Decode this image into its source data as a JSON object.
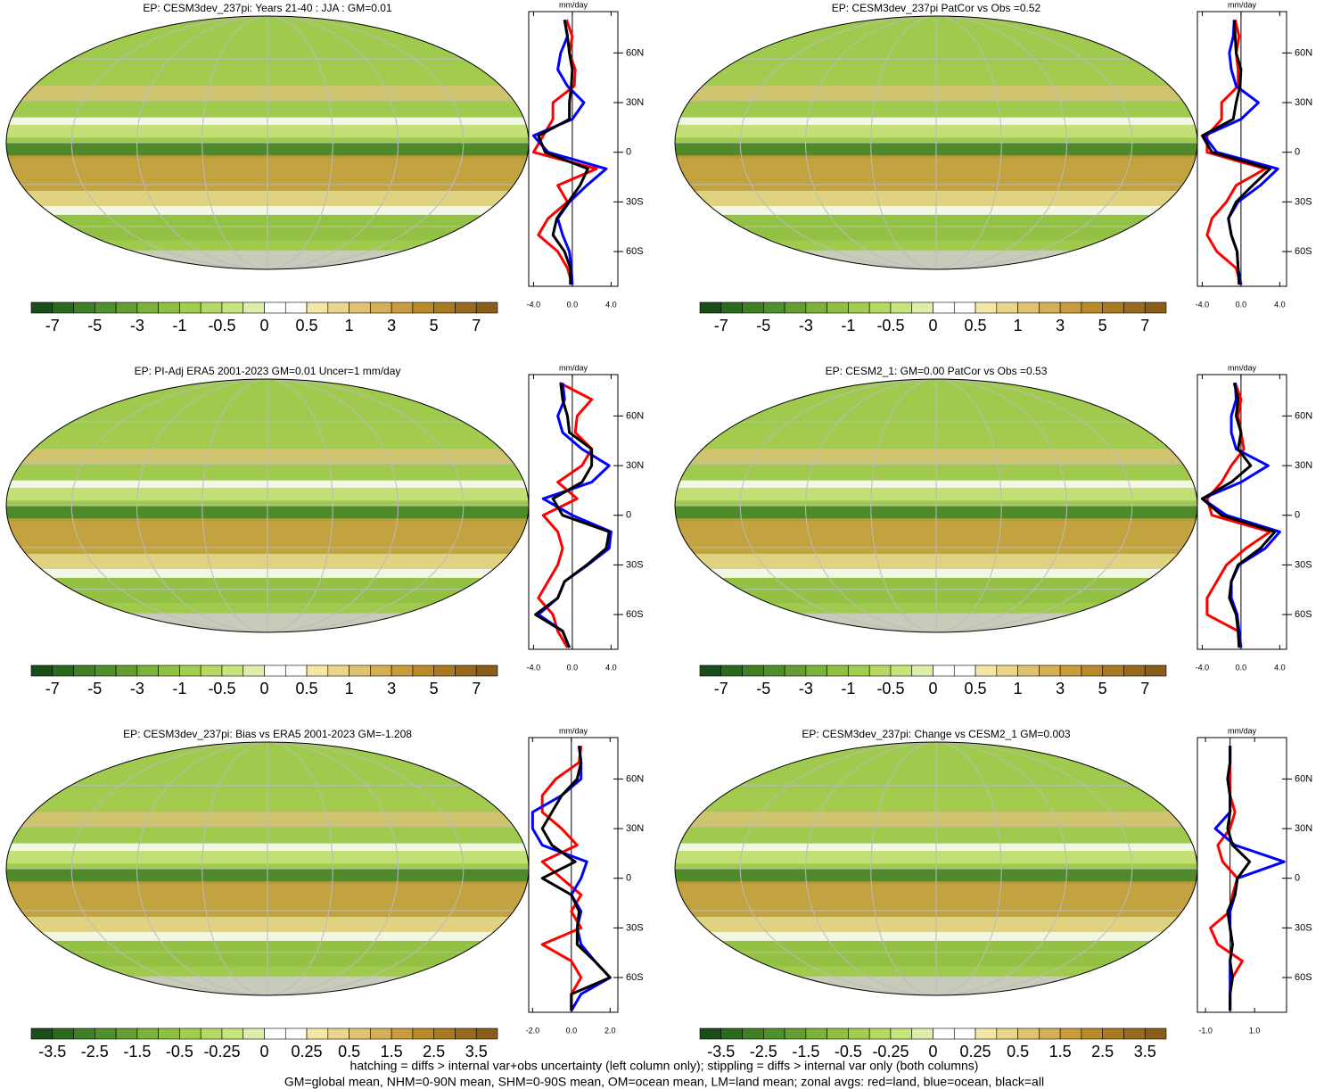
{
  "chart_data": [
    {
      "type": "map",
      "title": "EP: CESM3dev_237pi: Years 21-40 : JJA : GM=0.01",
      "colorbar_labels": [
        -7,
        -5,
        -3,
        -1,
        -0.5,
        0,
        0.5,
        1,
        3,
        5,
        7
      ],
      "colors": [
        "#1a4d1a",
        "#2a6a1f",
        "#3f7f25",
        "#4f8f2c",
        "#659d33",
        "#7cb23c",
        "#8fc043",
        "#a3cd4f",
        "#b6d964",
        "#c8e47c",
        "#ddeeaa",
        "#ffffff",
        "#ffffff",
        "#f3e7a8",
        "#ead58c",
        "#dfc272",
        "#d4af55",
        "#c89c3d",
        "#b98a2a",
        "#a97a22",
        "#98691e",
        "#8a5d1a"
      ]
    },
    {
      "type": "line",
      "xlabel": "mm/day",
      "xlim": [
        -4.5,
        4.7
      ],
      "ylim": [
        -81,
        85
      ],
      "xticks": [
        {
          "value": -4,
          "label": "-4.0"
        },
        {
          "value": 0,
          "label": "0.0"
        },
        {
          "value": 4,
          "label": "4.0"
        }
      ],
      "yticks": [
        {
          "value": 60,
          "label": "60N"
        },
        {
          "value": 30,
          "label": "30N"
        },
        0,
        {
          "value": -30,
          "label": "30S"
        },
        {
          "value": -60,
          "label": "60S"
        }
      ],
      "x": [
        -80,
        -70,
        -60,
        -50,
        -40,
        -30,
        -20,
        -10,
        0,
        10,
        20,
        30,
        40,
        50,
        60,
        70,
        80
      ],
      "series": [
        {
          "color": "#ff0000",
          "values": [
            0,
            -0.5,
            -1.5,
            -3.5,
            -2.5,
            -0.5,
            -1.5,
            2.5,
            -4.0,
            -3.0,
            -2.0,
            -2.0,
            0.2,
            0.3,
            -0.3,
            0,
            -0.6
          ]
        },
        {
          "color": "#0000ff",
          "values": [
            0,
            -0.1,
            -0.3,
            -1.0,
            -1.5,
            -0.3,
            1.5,
            3.5,
            -2.5,
            -4.0,
            0,
            1.2,
            -0.5,
            -1.5,
            -1.2,
            -0.5,
            -0.8
          ]
        },
        {
          "color": "#000000",
          "values": [
            -0.2,
            -0.2,
            -0.8,
            -2.0,
            -1.6,
            -0.4,
            0.8,
            1.6,
            -2.8,
            -3.5,
            -0.3,
            -0.3,
            -0.1,
            0,
            -0.3,
            -0.5,
            -0.8
          ]
        }
      ]
    },
    {
      "type": "map",
      "title": "EP: CESM3dev_237pi PatCor vs Obs =0.52",
      "colorbar_labels": [
        -7,
        -5,
        -3,
        -1,
        -0.5,
        0,
        0.5,
        1,
        3,
        5,
        7
      ],
      "colors": [
        "#1a4d1a",
        "#2a6a1f",
        "#3f7f25",
        "#4f8f2c",
        "#659d33",
        "#7cb23c",
        "#8fc043",
        "#a3cd4f",
        "#b6d964",
        "#c8e47c",
        "#ddeeaa",
        "#ffffff",
        "#ffffff",
        "#f3e7a8",
        "#ead58c",
        "#dfc272",
        "#d4af55",
        "#c89c3d",
        "#b98a2a",
        "#a97a22",
        "#98691e",
        "#8a5d1a"
      ]
    },
    {
      "type": "line",
      "xlabel": "mm/day",
      "xlim": [
        -4.5,
        4.7
      ],
      "ylim": [
        -81,
        85
      ],
      "xticks": [
        {
          "value": -4,
          "label": "-4.0"
        },
        {
          "value": 0,
          "label": "0.0"
        },
        {
          "value": 4,
          "label": "4.0"
        }
      ],
      "yticks": [
        {
          "value": 60,
          "label": "60N"
        },
        {
          "value": 30,
          "label": "30N"
        },
        0,
        {
          "value": -30,
          "label": "30S"
        },
        {
          "value": -60,
          "label": "60S"
        }
      ],
      "x": [
        -80,
        -70,
        -60,
        -50,
        -40,
        -30,
        -20,
        -10,
        0,
        10,
        20,
        30,
        40,
        50,
        60,
        70,
        80
      ],
      "series": [
        {
          "color": "#ff0000",
          "values": [
            0,
            -0.5,
            -2.5,
            -3.5,
            -3.0,
            -1.5,
            -0.5,
            2.5,
            -3.5,
            -3.5,
            -2.0,
            -2.0,
            -0.3,
            -0.3,
            -0.5,
            -0.2,
            -0.6
          ]
        },
        {
          "color": "#0000ff",
          "values": [
            0,
            -0.3,
            -0.4,
            -1.0,
            -1.3,
            -0.3,
            2.0,
            3.8,
            -2.5,
            -3.8,
            0,
            1.8,
            -0.5,
            -1.0,
            -1.2,
            -0.8,
            -0.7
          ]
        },
        {
          "color": "#000000",
          "values": [
            -0.2,
            -0.3,
            -0.4,
            -1.0,
            -1.3,
            -0.5,
            1.2,
            3.0,
            -3.0,
            -4.0,
            -0.8,
            -0.5,
            -0.1,
            0,
            -0.5,
            -0.6,
            -0.7
          ]
        }
      ]
    },
    {
      "type": "map",
      "title": "EP: PI-Adj ERA5 2001-2023 GM=0.01 Uncer=1 mm/day",
      "colorbar_labels": [
        -7,
        -5,
        -3,
        -1,
        -0.5,
        0,
        0.5,
        1,
        3,
        5,
        7
      ],
      "colors": [
        "#1a4d1a",
        "#2a6a1f",
        "#3f7f25",
        "#4f8f2c",
        "#659d33",
        "#7cb23c",
        "#8fc043",
        "#a3cd4f",
        "#b6d964",
        "#c8e47c",
        "#ddeeaa",
        "#ffffff",
        "#ffffff",
        "#f3e7a8",
        "#ead58c",
        "#dfc272",
        "#d4af55",
        "#c89c3d",
        "#b98a2a",
        "#a97a22",
        "#98691e",
        "#8a5d1a"
      ]
    },
    {
      "type": "line",
      "xlabel": "mm/day",
      "xlim": [
        -4.5,
        4.7
      ],
      "ylim": [
        -81,
        85
      ],
      "xticks": [
        {
          "value": -4,
          "label": "-4.0"
        },
        {
          "value": 0,
          "label": "0.0"
        },
        {
          "value": 4,
          "label": "4.0"
        }
      ],
      "yticks": [
        {
          "value": 60,
          "label": "60N"
        },
        {
          "value": 30,
          "label": "30N"
        },
        0,
        {
          "value": -30,
          "label": "30S"
        },
        {
          "value": -60,
          "label": "60S"
        }
      ],
      "x": [
        -80,
        -70,
        -60,
        -50,
        -40,
        -30,
        -20,
        -10,
        0,
        10,
        20,
        30,
        40,
        50,
        60,
        70,
        80
      ],
      "series": [
        {
          "color": "#ff0000",
          "values": [
            -0.5,
            -1.5,
            -2.0,
            -3.5,
            -2.5,
            -1.5,
            -1.0,
            -1.5,
            -3.0,
            0.5,
            -1.5,
            1.0,
            2.0,
            0.3,
            0.5,
            2.0,
            -1.3
          ]
        },
        {
          "color": "#0000ff",
          "values": [
            -0.3,
            -1.0,
            -3.5,
            -1.5,
            -0.8,
            1.6,
            3.8,
            4.0,
            0,
            -3.0,
            2.0,
            3.8,
            1.0,
            -1.0,
            -1.5,
            -0.8,
            -1.0
          ]
        },
        {
          "color": "#000000",
          "values": [
            -0.3,
            -1.0,
            -3.8,
            -1.5,
            -0.8,
            1.5,
            3.5,
            3.8,
            -1.0,
            -2.0,
            1.0,
            2.0,
            2.0,
            -0.3,
            -0.5,
            -1.0,
            -1.2
          ]
        }
      ]
    },
    {
      "type": "map",
      "title": "EP: CESM2_1: GM=0.00 PatCor vs Obs =0.53",
      "colorbar_labels": [
        -7,
        -5,
        -3,
        -1,
        -0.5,
        0,
        0.5,
        1,
        3,
        5,
        7
      ],
      "colors": [
        "#1a4d1a",
        "#2a6a1f",
        "#3f7f25",
        "#4f8f2c",
        "#659d33",
        "#7cb23c",
        "#8fc043",
        "#a3cd4f",
        "#b6d964",
        "#c8e47c",
        "#ddeeaa",
        "#ffffff",
        "#ffffff",
        "#f3e7a8",
        "#ead58c",
        "#dfc272",
        "#d4af55",
        "#c89c3d",
        "#b98a2a",
        "#a97a22",
        "#98691e",
        "#8a5d1a"
      ]
    },
    {
      "type": "line",
      "xlabel": "mm/day",
      "xlim": [
        -4.5,
        4.7
      ],
      "ylim": [
        -81,
        85
      ],
      "xticks": [
        {
          "value": -4,
          "label": "-4.0"
        },
        {
          "value": 0,
          "label": "0.0"
        },
        {
          "value": 4,
          "label": "4.0"
        }
      ],
      "yticks": [
        {
          "value": 60,
          "label": "60N"
        },
        {
          "value": 30,
          "label": "30N"
        },
        0,
        {
          "value": -30,
          "label": "30S"
        },
        {
          "value": -60,
          "label": "60S"
        }
      ],
      "x": [
        -80,
        -70,
        -60,
        -50,
        -40,
        -30,
        -20,
        -10,
        0,
        10,
        20,
        30,
        40,
        50,
        60,
        70,
        80
      ],
      "series": [
        {
          "color": "#ff0000",
          "values": [
            0,
            -0.3,
            -3.5,
            -3.5,
            -2.5,
            -1.5,
            0.5,
            3.0,
            -3.0,
            -3.5,
            -2.0,
            -1.0,
            0.3,
            0,
            -0.3,
            0,
            -0.6
          ]
        },
        {
          "color": "#0000ff",
          "values": [
            0,
            -0.2,
            -0.4,
            -1.0,
            -1.0,
            -0.2,
            2.5,
            4.0,
            -1.5,
            -4.0,
            0,
            2.8,
            -0.5,
            -1.0,
            -1.0,
            -0.5,
            -0.6
          ]
        },
        {
          "color": "#000000",
          "values": [
            -0.2,
            -0.3,
            -0.5,
            -1.2,
            -1.0,
            -0.3,
            2.0,
            3.5,
            -2.0,
            -4.0,
            -1.0,
            1.0,
            -0.3,
            0,
            -0.5,
            -0.3,
            -0.7
          ]
        }
      ]
    },
    {
      "type": "map",
      "title": "EP: CESM3dev_237pi: Bias vs ERA5 2001-2023 GM=-1.208",
      "colorbar_labels": [
        -3.5,
        -2.5,
        -1.5,
        -0.5,
        -0.25,
        0,
        0.25,
        0.5,
        1.5,
        2.5,
        3.5
      ],
      "colors": [
        "#1a4d1a",
        "#2a6a1f",
        "#3f7f25",
        "#4f8f2c",
        "#659d33",
        "#7cb23c",
        "#8fc043",
        "#a3cd4f",
        "#b6d964",
        "#c8e47c",
        "#ddeeaa",
        "#ffffff",
        "#ffffff",
        "#f3e7a8",
        "#ead58c",
        "#dfc272",
        "#d4af55",
        "#c89c3d",
        "#b98a2a",
        "#a97a22",
        "#98691e",
        "#8a5d1a"
      ]
    },
    {
      "type": "line",
      "xlabel": "mm/day",
      "xlim": [
        -2.2,
        2.4
      ],
      "ylim": [
        -81,
        85
      ],
      "xticks": [
        {
          "value": -2,
          "label": "-2.0"
        },
        {
          "value": 0,
          "label": "0.0"
        },
        {
          "value": 2,
          "label": "2.0"
        }
      ],
      "yticks": [
        {
          "value": 60,
          "label": "60N"
        },
        {
          "value": 30,
          "label": "30N"
        },
        0,
        {
          "value": -30,
          "label": "30S"
        },
        {
          "value": -60,
          "label": "60S"
        }
      ],
      "x": [
        -80,
        -70,
        -60,
        -50,
        -40,
        -30,
        -20,
        -10,
        0,
        10,
        20,
        30,
        40,
        50,
        60,
        70,
        80
      ],
      "series": [
        {
          "color": "#ff0000",
          "values": [
            0,
            0,
            0.5,
            0,
            -1.5,
            0.5,
            0,
            0.5,
            -0.5,
            -1.5,
            0.3,
            -0.5,
            -1.5,
            -1.5,
            -0.8,
            0.4,
            0.5
          ]
        },
        {
          "color": "#0000ff",
          "values": [
            0,
            0.5,
            2.0,
            1.2,
            0.5,
            0.3,
            0.5,
            0,
            0.5,
            0.8,
            -1.5,
            -2.0,
            -2.0,
            -0.5,
            0.5,
            0.5,
            0.4
          ]
        },
        {
          "color": "#000000",
          "values": [
            0,
            0,
            2.0,
            1.2,
            0.3,
            0.3,
            0.4,
            0,
            -1.5,
            0.2,
            -1.0,
            -1.5,
            -1.0,
            -0.5,
            0.3,
            0.5,
            0.4
          ]
        }
      ]
    },
    {
      "type": "map",
      "title": "EP: CESM3dev_237pi: Change vs CESM2_1 GM=0.003",
      "colorbar_labels": [
        -3.5,
        -2.5,
        -1.5,
        -0.5,
        -0.25,
        0,
        0.25,
        0.5,
        1.5,
        2.5,
        3.5
      ],
      "colors": [
        "#1a4d1a",
        "#2a6a1f",
        "#3f7f25",
        "#4f8f2c",
        "#659d33",
        "#7cb23c",
        "#8fc043",
        "#a3cd4f",
        "#b6d964",
        "#c8e47c",
        "#ddeeaa",
        "#ffffff",
        "#ffffff",
        "#f3e7a8",
        "#ead58c",
        "#dfc272",
        "#d4af55",
        "#c89c3d",
        "#b98a2a",
        "#a97a22",
        "#98691e",
        "#8a5d1a"
      ]
    },
    {
      "type": "line",
      "xlabel": "mm/day",
      "xlim": [
        -1.33,
        2.3
      ],
      "ylim": [
        -81,
        85
      ],
      "xticks": [
        {
          "value": -1,
          "label": "-1.0"
        },
        {
          "value": 1,
          "label": "1.0"
        }
      ],
      "yticks": [
        {
          "value": 60,
          "label": "60N"
        },
        {
          "value": 30,
          "label": "30N"
        },
        0,
        {
          "value": -30,
          "label": "30S"
        },
        {
          "value": -60,
          "label": "60S"
        }
      ],
      "x": [
        -80,
        -70,
        -60,
        -50,
        -40,
        -30,
        -20,
        -10,
        0,
        10,
        20,
        30,
        40,
        50,
        60,
        70,
        80
      ],
      "series": [
        {
          "color": "#ff0000",
          "values": [
            0,
            0,
            0.1,
            0.5,
            -0.5,
            -0.8,
            0,
            0.1,
            0.3,
            -0.3,
            -0.5,
            0,
            0.2,
            0,
            0,
            0,
            0
          ]
        },
        {
          "color": "#0000ff",
          "values": [
            0,
            0,
            0,
            0,
            0.1,
            0,
            0,
            0.2,
            0.3,
            2.2,
            0.2,
            -0.6,
            0,
            0,
            -0.1,
            0,
            0
          ]
        },
        {
          "color": "#000000",
          "values": [
            0,
            0,
            0.1,
            0,
            0.1,
            0,
            -0.1,
            0.2,
            0.3,
            0.8,
            0.1,
            -0.1,
            0,
            0,
            -0.1,
            0,
            0
          ]
        }
      ]
    }
  ],
  "footnote": [
    "hatching = diffs > internal var+obs uncertainty (left column only); stippling = diffs > internal var only (both columns)",
    "GM=global mean, NHM=0-90N mean, SHM=0-90S mean, OM=ocean mean, LM=land mean; zonal avgs: red=land, blue=ocean, black=all"
  ]
}
